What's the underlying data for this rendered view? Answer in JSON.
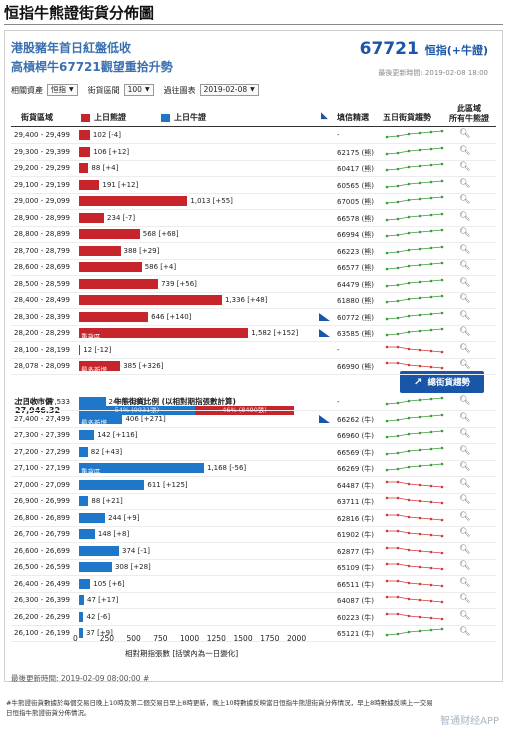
{
  "page": {
    "title": "恒指牛熊證街貨分佈圖"
  },
  "header": {
    "headline_1": "港股豬年首日紅盤低收",
    "headline_2": "高槓桿牛67721觀望重拾升勢",
    "code_number": "67721",
    "code_suffix": "恒指(+牛證)",
    "last_update": "最後更新時間: 2019-02-08 18:00"
  },
  "controls": {
    "asset_label": "相關資產",
    "asset_value": "恒指",
    "range_label": "街貨區間",
    "range_value": "100",
    "date_label": "過往圖表",
    "date_value": "2019-02-08"
  },
  "table_header": {
    "range_col": "街貨區域",
    "bear_legend": "上日熊證",
    "bull_legend": "上日牛證",
    "code_col": "填信精選",
    "trend_col": "五日街貨趨勢",
    "all_col_1": "此區域",
    "all_col_2": "所有牛熊證"
  },
  "colors": {
    "bear": "#c8242b",
    "bull": "#1f77c9",
    "spark_up": "#3a9c3a",
    "spark_down": "#d23a3a",
    "accent": "#1a56a8"
  },
  "bear_rows": [
    {
      "range": "29,400 - 29,499",
      "value": 102,
      "label": "102 [-4]",
      "code": "-",
      "trend": "up"
    },
    {
      "range": "29,300 - 29,399",
      "value": 106,
      "label": "106 [+12]",
      "code": "62175 (熊)",
      "trend": "up"
    },
    {
      "range": "29,200 - 29,299",
      "value": 88,
      "label": "88 [+4]",
      "code": "60417 (熊)",
      "trend": "up"
    },
    {
      "range": "29,100 - 29,199",
      "value": 191,
      "label": "191 [+12]",
      "code": "60565 (熊)",
      "trend": "up"
    },
    {
      "range": "29,000 - 29,099",
      "value": 1013,
      "label": "1,013 [+55]",
      "code": "67005 (熊)",
      "trend": "up"
    },
    {
      "range": "28,900 - 28,999",
      "value": 234,
      "label": "234 [-7]",
      "code": "66578 (熊)",
      "trend": "up"
    },
    {
      "range": "28,800 - 28,899",
      "value": 568,
      "label": "568 [+68]",
      "code": "66994 (熊)",
      "trend": "up"
    },
    {
      "range": "28,700 - 28,799",
      "value": 388,
      "label": "388 [+29]",
      "code": "66223 (熊)",
      "trend": "up"
    },
    {
      "range": "28,600 - 28,699",
      "value": 586,
      "label": "586 [+4]",
      "code": "66577 (熊)",
      "trend": "up"
    },
    {
      "range": "28,500 - 28,599",
      "value": 739,
      "label": "739 [+56]",
      "code": "64479 (熊)",
      "trend": "up"
    },
    {
      "range": "28,400 - 28,499",
      "value": 1336,
      "label": "1,336 [+48]",
      "code": "61880 (熊)",
      "trend": "up"
    },
    {
      "range": "28,300 - 28,399",
      "value": 646,
      "label": "646 [+140]",
      "code": "60772 (熊)",
      "trend": "up",
      "alert": true
    },
    {
      "range": "28,200 - 28,299",
      "value": 1582,
      "label": "1,582 [+152]",
      "code": "63585 (熊)",
      "trend": "up",
      "alert": true,
      "tag": "重貨區"
    },
    {
      "range": "28,100 - 28,199",
      "value": 12,
      "label": "12 [-12]",
      "code": "-",
      "trend": "down"
    },
    {
      "range": "28,078 - 28,099",
      "value": 385,
      "label": "385 [+326]",
      "code": "66990 (熊)",
      "trend": "down",
      "tag": "最多新增"
    }
  ],
  "middle": {
    "close_label": "上日收市價",
    "close_value": "27,946.32",
    "ratio_title": "牛熊街貨比例 (以相對期指張數計算)",
    "bull_pct_text": "54% (9931張)",
    "bear_pct_text": "46% (8490張)",
    "bull_pct": 54,
    "trend_button": "總街貨趨勢"
  },
  "bull_rows": [
    {
      "range": "27,500 - 27,533",
      "value": 248,
      "label": "248 [-486]",
      "code": "-",
      "trend": "up"
    },
    {
      "range": "27,400 - 27,499",
      "value": 406,
      "label": "406 [+271]",
      "code": "66262 (牛)",
      "trend": "up",
      "alert": true,
      "tag": "最多新增"
    },
    {
      "range": "27,300 - 27,399",
      "value": 142,
      "label": "142 [+116]",
      "code": "66960 (牛)",
      "trend": "up"
    },
    {
      "range": "27,200 - 27,299",
      "value": 82,
      "label": "82 [+43]",
      "code": "66569 (牛)",
      "trend": "up"
    },
    {
      "range": "27,100 - 27,199",
      "value": 1168,
      "label": "1,168 [-56]",
      "code": "66269 (牛)",
      "trend": "up",
      "tag": "重貨區"
    },
    {
      "range": "27,000 - 27,099",
      "value": 611,
      "label": "611 [+125]",
      "code": "64487 (牛)",
      "trend": "down"
    },
    {
      "range": "26,900 - 26,999",
      "value": 88,
      "label": "88 [+21]",
      "code": "63711 (牛)",
      "trend": "down"
    },
    {
      "range": "26,800 - 26,899",
      "value": 244,
      "label": "244 [+9]",
      "code": "62816 (牛)",
      "trend": "down"
    },
    {
      "range": "26,700 - 26,799",
      "value": 148,
      "label": "148 [+8]",
      "code": "61902 (牛)",
      "trend": "down"
    },
    {
      "range": "26,600 - 26,699",
      "value": 374,
      "label": "374 [-1]",
      "code": "62877 (牛)",
      "trend": "down"
    },
    {
      "range": "26,500 - 26,599",
      "value": 308,
      "label": "308 [+28]",
      "code": "65109 (牛)",
      "trend": "down"
    },
    {
      "range": "26,400 - 26,499",
      "value": 105,
      "label": "105 [+6]",
      "code": "66511 (牛)",
      "trend": "down"
    },
    {
      "range": "26,300 - 26,399",
      "value": 47,
      "label": "47 [+17]",
      "code": "64087 (牛)",
      "trend": "down"
    },
    {
      "range": "26,200 - 26,299",
      "value": 42,
      "label": "42 [-6]",
      "code": "60223 (牛)",
      "trend": "down"
    },
    {
      "range": "26,100 - 26,199",
      "value": 37,
      "label": "37 [+9]",
      "code": "65121 (牛)",
      "trend": "up"
    }
  ],
  "axis": {
    "ticks": [
      "0",
      "250",
      "500",
      "750",
      "1000",
      "1250",
      "1500",
      "1750",
      "2000"
    ],
    "title": "相對期指張數 [括號內為一日變化]"
  },
  "footer": {
    "last_update": "最後更新時間: 2019-02-09 08:00:00 #",
    "note": "#牛熊證街貨數據於每個交易日晚上10時及第二個交易日早上8時更新，晚上10時數據反映當日恒指牛熊證街貨分佈情況，早上8時數據反映上一交易日恒指牛熊證街貨分佈情況。",
    "watermark": "智通财经APP"
  },
  "chart_data": {
    "type": "bar",
    "title": "恒指牛熊證街貨分佈圖",
    "xlabel": "相對期指張數 [括號內為一日變化]",
    "ylabel": "街貨區域",
    "xlim": [
      0,
      2000
    ],
    "categories": [
      "29,400 - 29,499",
      "29,300 - 29,399",
      "29,200 - 29,299",
      "29,100 - 29,199",
      "29,000 - 29,099",
      "28,900 - 28,999",
      "28,800 - 28,899",
      "28,700 - 28,799",
      "28,600 - 28,699",
      "28,500 - 28,599",
      "28,400 - 28,499",
      "28,300 - 28,399",
      "28,200 - 28,299",
      "28,100 - 28,199",
      "28,078 - 28,099",
      "27,500 - 27,533",
      "27,400 - 27,499",
      "27,300 - 27,399",
      "27,200 - 27,299",
      "27,100 - 27,199",
      "27,000 - 27,099",
      "26,900 - 26,999",
      "26,800 - 26,899",
      "26,700 - 26,799",
      "26,600 - 26,699",
      "26,500 - 26,599",
      "26,400 - 26,499",
      "26,300 - 26,399",
      "26,200 - 26,299",
      "26,100 - 26,199"
    ],
    "series": [
      {
        "name": "上日熊證",
        "values": [
          102,
          106,
          88,
          191,
          1013,
          234,
          568,
          388,
          586,
          739,
          1336,
          646,
          1582,
          12,
          385,
          null,
          null,
          null,
          null,
          null,
          null,
          null,
          null,
          null,
          null,
          null,
          null,
          null,
          null,
          null
        ]
      },
      {
        "name": "上日牛證",
        "values": [
          null,
          null,
          null,
          null,
          null,
          null,
          null,
          null,
          null,
          null,
          null,
          null,
          null,
          null,
          null,
          248,
          406,
          142,
          82,
          1168,
          611,
          88,
          244,
          148,
          374,
          308,
          105,
          47,
          42,
          37
        ]
      }
    ],
    "legend": "top"
  }
}
